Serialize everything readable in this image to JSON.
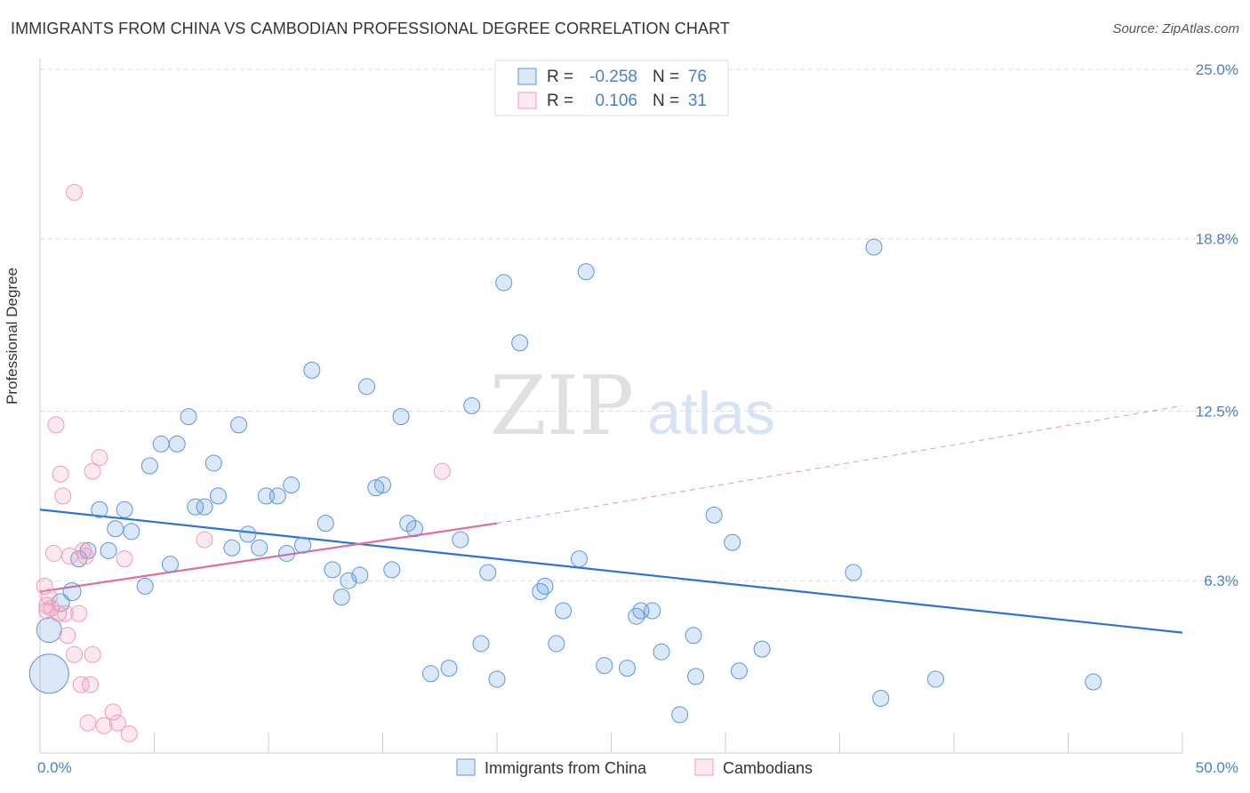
{
  "header": {
    "title": "IMMIGRANTS FROM CHINA VS CAMBODIAN PROFESSIONAL DEGREE CORRELATION CHART",
    "source": "Source: ZipAtlas.com"
  },
  "watermark": {
    "zip": "ZIP",
    "atlas": "atlas"
  },
  "colors": {
    "blue": "#5b95e0",
    "pink": "#f29ab6",
    "blue_line": "#2f72d2",
    "pink_line": "#e36e9b",
    "tick_text": "#4a7fd0"
  },
  "chart_data": {
    "type": "scatter",
    "xlim": [
      0,
      50
    ],
    "ylim": [
      0,
      25
    ],
    "x_tick_labels": [
      "0.0%",
      "50.0%"
    ],
    "y_ticks": [
      6.3,
      12.5,
      18.8,
      25.0
    ],
    "y_tick_labels": [
      "6.3%",
      "12.5%",
      "18.8%",
      "25.0%"
    ],
    "ylabel": "Professional Degree",
    "grid": true,
    "legend_placement": "top-center",
    "stats": [
      {
        "r_label": "R =",
        "r_value": "-0.258",
        "n_label": "N =",
        "n_value": "76"
      },
      {
        "r_label": "R =",
        "r_value": "0.106",
        "n_label": "N =",
        "n_value": "31"
      }
    ],
    "series": [
      {
        "name": "Immigrants from China",
        "trend": {
          "x": [
            0,
            50
          ],
          "y": [
            8.9,
            4.4
          ],
          "dashed_from": null
        },
        "points": [
          [
            0.4,
            2.9,
            22
          ],
          [
            0.4,
            4.5,
            14
          ],
          [
            0.9,
            5.5,
            10
          ],
          [
            1.4,
            5.9,
            10
          ],
          [
            1.7,
            7.1,
            9
          ],
          [
            2.1,
            7.4,
            9
          ],
          [
            2.6,
            8.9,
            9
          ],
          [
            3.0,
            7.4,
            9
          ],
          [
            3.3,
            8.2,
            9
          ],
          [
            3.7,
            8.9,
            9
          ],
          [
            4.0,
            8.1,
            9
          ],
          [
            4.6,
            6.1,
            9
          ],
          [
            4.8,
            10.5,
            9
          ],
          [
            5.3,
            11.3,
            9
          ],
          [
            5.7,
            6.9,
            9
          ],
          [
            6.0,
            11.3,
            9
          ],
          [
            6.5,
            12.3,
            9
          ],
          [
            6.8,
            9.0,
            9
          ],
          [
            7.2,
            9.0,
            9
          ],
          [
            7.6,
            10.6,
            9
          ],
          [
            7.8,
            9.4,
            9
          ],
          [
            8.4,
            7.5,
            9
          ],
          [
            8.7,
            12.0,
            9
          ],
          [
            9.1,
            8.0,
            9
          ],
          [
            9.6,
            7.5,
            9
          ],
          [
            9.9,
            9.4,
            9
          ],
          [
            10.4,
            9.4,
            9
          ],
          [
            10.8,
            7.3,
            9
          ],
          [
            11.0,
            9.8,
            9
          ],
          [
            11.5,
            7.6,
            9
          ],
          [
            11.9,
            14.0,
            9
          ],
          [
            12.5,
            8.4,
            9
          ],
          [
            12.8,
            6.7,
            9
          ],
          [
            13.2,
            5.7,
            9
          ],
          [
            13.5,
            6.3,
            9
          ],
          [
            14.0,
            6.5,
            9
          ],
          [
            14.3,
            13.4,
            9
          ],
          [
            14.7,
            9.7,
            9
          ],
          [
            15.0,
            9.8,
            9
          ],
          [
            15.4,
            6.7,
            9
          ],
          [
            15.8,
            12.3,
            9
          ],
          [
            16.1,
            8.4,
            9
          ],
          [
            16.4,
            8.2,
            9
          ],
          [
            17.1,
            2.9,
            9
          ],
          [
            17.9,
            3.1,
            9
          ],
          [
            18.4,
            7.8,
            9
          ],
          [
            18.9,
            12.7,
            9
          ],
          [
            19.3,
            4.0,
            9
          ],
          [
            19.6,
            6.6,
            9
          ],
          [
            20.0,
            2.7,
            9
          ],
          [
            20.3,
            17.2,
            9
          ],
          [
            21.0,
            15.0,
            9
          ],
          [
            21.9,
            5.9,
            9
          ],
          [
            22.1,
            6.1,
            9
          ],
          [
            22.6,
            4.0,
            9
          ],
          [
            22.9,
            5.2,
            9
          ],
          [
            23.6,
            7.1,
            9
          ],
          [
            23.9,
            17.6,
            9
          ],
          [
            24.7,
            3.2,
            9
          ],
          [
            25.7,
            3.1,
            9
          ],
          [
            26.1,
            5.0,
            9
          ],
          [
            26.3,
            5.2,
            9
          ],
          [
            26.8,
            5.2,
            9
          ],
          [
            27.2,
            3.7,
            9
          ],
          [
            28.0,
            1.4,
            9
          ],
          [
            28.6,
            4.3,
            9
          ],
          [
            28.7,
            2.8,
            9
          ],
          [
            29.5,
            8.7,
            9
          ],
          [
            30.3,
            7.7,
            9
          ],
          [
            30.6,
            3.0,
            9
          ],
          [
            31.6,
            3.8,
            9
          ],
          [
            35.6,
            6.6,
            9
          ],
          [
            36.5,
            18.5,
            9
          ],
          [
            36.8,
            2.0,
            9
          ],
          [
            39.2,
            2.7,
            9
          ],
          [
            46.1,
            2.6,
            9
          ]
        ]
      },
      {
        "name": "Cambodians",
        "trend": {
          "x": [
            0,
            20
          ],
          "y": [
            5.9,
            8.4
          ],
          "dashed_from": 20,
          "dashed_to": [
            50,
            12.7
          ]
        },
        "points": [
          [
            0.2,
            6.1,
            9
          ],
          [
            0.3,
            5.4,
            9
          ],
          [
            0.3,
            5.2,
            9
          ],
          [
            0.4,
            5.7,
            9
          ],
          [
            0.5,
            5.3,
            9
          ],
          [
            0.6,
            7.3,
            9
          ],
          [
            0.7,
            12.0,
            9
          ],
          [
            0.8,
            5.1,
            9
          ],
          [
            0.9,
            10.2,
            9
          ],
          [
            1.0,
            9.4,
            9
          ],
          [
            1.1,
            5.1,
            9
          ],
          [
            1.2,
            4.3,
            9
          ],
          [
            1.3,
            7.2,
            9
          ],
          [
            1.5,
            3.6,
            9
          ],
          [
            1.5,
            20.5,
            9
          ],
          [
            1.7,
            5.1,
            9
          ],
          [
            1.8,
            2.5,
            9
          ],
          [
            1.9,
            7.4,
            9
          ],
          [
            2.0,
            7.2,
            9
          ],
          [
            2.1,
            1.1,
            9
          ],
          [
            2.2,
            2.5,
            9
          ],
          [
            2.3,
            3.6,
            9
          ],
          [
            2.3,
            10.3,
            9
          ],
          [
            2.6,
            10.8,
            9
          ],
          [
            2.8,
            1.0,
            9
          ],
          [
            3.2,
            1.5,
            9
          ],
          [
            3.4,
            1.1,
            9
          ],
          [
            3.7,
            7.1,
            9
          ],
          [
            3.9,
            0.7,
            9
          ],
          [
            7.2,
            7.8,
            9
          ],
          [
            17.6,
            10.3,
            9
          ]
        ]
      }
    ]
  }
}
